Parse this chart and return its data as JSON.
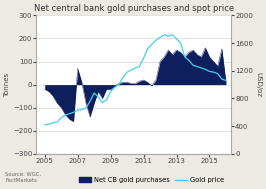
{
  "title": "Net central bank gold purchases and spot price",
  "ylabel_left": "Tonnes",
  "ylabel_right": "USD/oz",
  "bg_color": "#ede9e3",
  "plot_bg_color": "#ffffff",
  "fill_color": "#0d1f5c",
  "line_color": "#40d0f0",
  "years_x": [
    2005,
    2007,
    2009,
    2011,
    2013,
    2015
  ],
  "bar_data_x": [
    2005.0,
    2005.25,
    2005.5,
    2005.75,
    2006.0,
    2006.25,
    2006.5,
    2006.75,
    2007.0,
    2007.25,
    2007.5,
    2007.75,
    2008.0,
    2008.25,
    2008.5,
    2008.75,
    2009.0,
    2009.25,
    2009.5,
    2009.75,
    2010.0,
    2010.25,
    2010.5,
    2010.75,
    2011.0,
    2011.25,
    2011.5,
    2011.75,
    2012.0,
    2012.25,
    2012.5,
    2012.75,
    2013.0,
    2013.25,
    2013.5,
    2013.75,
    2014.0,
    2014.25,
    2014.5,
    2014.75,
    2015.0,
    2015.25,
    2015.5,
    2015.75,
    2016.0
  ],
  "bar_data_y": [
    -20,
    -30,
    -50,
    -80,
    -100,
    -130,
    -150,
    -160,
    70,
    10,
    -80,
    -140,
    -80,
    -30,
    -60,
    -20,
    -20,
    -5,
    5,
    10,
    10,
    5,
    5,
    15,
    20,
    10,
    -5,
    20,
    100,
    120,
    150,
    130,
    150,
    140,
    120,
    140,
    150,
    130,
    120,
    160,
    120,
    100,
    80,
    155,
    10
  ],
  "line_data_x": [
    2005.0,
    2005.25,
    2005.5,
    2005.75,
    2006.0,
    2006.25,
    2006.5,
    2006.75,
    2007.0,
    2007.25,
    2007.5,
    2007.75,
    2008.0,
    2008.25,
    2008.5,
    2008.75,
    2009.0,
    2009.25,
    2009.5,
    2009.75,
    2010.0,
    2010.25,
    2010.5,
    2010.75,
    2011.0,
    2011.25,
    2011.5,
    2011.75,
    2012.0,
    2012.25,
    2012.5,
    2012.75,
    2013.0,
    2013.25,
    2013.5,
    2013.75,
    2014.0,
    2014.25,
    2014.5,
    2014.75,
    2015.0,
    2015.25,
    2015.5,
    2015.75,
    2016.0
  ],
  "line_data_y": [
    420,
    430,
    450,
    460,
    520,
    560,
    580,
    600,
    630,
    640,
    660,
    760,
    880,
    820,
    740,
    780,
    900,
    960,
    1000,
    1100,
    1180,
    1210,
    1240,
    1260,
    1380,
    1520,
    1580,
    1640,
    1680,
    1720,
    1700,
    1720,
    1660,
    1600,
    1400,
    1350,
    1280,
    1260,
    1240,
    1220,
    1190,
    1180,
    1160,
    1080,
    1060
  ],
  "ylim_left": [
    -300,
    300
  ],
  "ylim_right": [
    0,
    2000
  ],
  "yticks_left": [
    -300,
    -200,
    -100,
    0,
    100,
    200,
    300
  ],
  "yticks_right": [
    0,
    400,
    800,
    1200,
    1600,
    2000
  ],
  "source_text": "Source: WGC,\nFactMarkets",
  "legend_bar_label": "Net CB gold purchases",
  "legend_line_label": "Gold price",
  "grid_color": "#d0ccc8",
  "title_fontsize": 6.0,
  "axis_fontsize": 5.0,
  "legend_fontsize": 4.8,
  "source_fontsize": 3.8
}
